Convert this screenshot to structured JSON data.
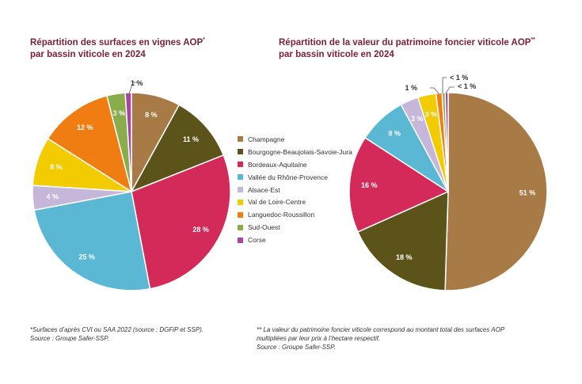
{
  "chart_data": [
    {
      "type": "pie",
      "title": "Répartition des surfaces en vignes AOP",
      "title_mark": "*",
      "subtitle": "par bassin viticole en 2024",
      "categories": [
        "Champagne",
        "Bourgogne-Beaujolais-Savoie-Jura",
        "Bordeaux-Aquitaine",
        "Vallée du Rhône-Provence",
        "Alsace-Est",
        "Val de Loire-Centre",
        "Languedoc-Roussillon",
        "Sud-Ouest",
        "Corse"
      ],
      "values": [
        8,
        11,
        28,
        25,
        4,
        8,
        12,
        3,
        1
      ],
      "labels": [
        "8 %",
        "11 %",
        "28 %",
        "25 %",
        "4 %",
        "8 %",
        "12 %",
        "3 %",
        "1 %"
      ],
      "unit": "%"
    },
    {
      "type": "pie",
      "title": "Répartition de la valeur du patrimoine foncier viticole AOP",
      "title_mark": "**",
      "subtitle": "par bassin viticole en 2024",
      "categories": [
        "Champagne",
        "Bourgogne-Beaujolais-Savoie-Jura",
        "Bordeaux-Aquitaine",
        "Vallée du Rhône-Provence",
        "Alsace-Est",
        "Val de Loire-Centre",
        "Languedoc-Roussillon",
        "Sud-Ouest",
        "Corse"
      ],
      "values": [
        51,
        18,
        16,
        8,
        3,
        3,
        1,
        0.5,
        0.5
      ],
      "labels": [
        "51 %",
        "18 %",
        "16 %",
        "8 %",
        "3 %",
        "3 %",
        "1 %",
        "< 1 %",
        "< 1 %"
      ],
      "unit": "%"
    }
  ],
  "legend": {
    "items": [
      "Champagne",
      "Bourgogne-Beaujolais-Savoie-Jura",
      "Bordeaux-Aquitaine",
      "Vallée du Rhône-Provence",
      "Alsace-Est",
      "Val de Loire-Centre",
      "Languedoc-Roussillon",
      "Sud-Ouest",
      "Corse"
    ],
    "colors": [
      "#a87a45",
      "#5b5319",
      "#d42a5a",
      "#5ab8d4",
      "#c6b6d9",
      "#f2cb00",
      "#ef7d12",
      "#8aac4b",
      "#a845a2"
    ]
  },
  "notes": {
    "left": [
      "*Surfaces d’après CVI ou SAA 2022 (source : DGFiP et SSP).",
      "Source : Groupe Safer-SSP."
    ],
    "right": [
      "** La valeur du patrimoine foncier viticole correspond au montant total des surfaces AOP",
      "multipliées par leur prix à l’hectare respectif.",
      "Source : Groupe Safer-SSP."
    ]
  }
}
